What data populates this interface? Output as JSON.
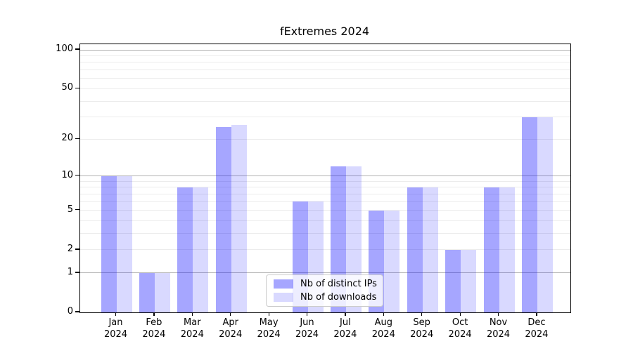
{
  "chart_data": {
    "type": "bar",
    "title": "fExtremes 2024",
    "categories": [
      "Jan",
      "Feb",
      "Mar",
      "Apr",
      "May",
      "Jun",
      "Jul",
      "Aug",
      "Sep",
      "Oct",
      "Nov",
      "Dec"
    ],
    "category_year": "2024",
    "series": [
      {
        "name": "Nb of distinct IPs",
        "color": "rgba(0,0,255,0.35)",
        "values": [
          10,
          1,
          8,
          25,
          0,
          6,
          12,
          5,
          8,
          2,
          8,
          30
        ]
      },
      {
        "name": "Nb of downloads",
        "color": "rgba(0,0,255,0.15)",
        "values": [
          10,
          1,
          8,
          26,
          0,
          6,
          12,
          5,
          8,
          2,
          8,
          30
        ]
      }
    ],
    "y_scale": "log1p",
    "ylim": [
      0,
      100
    ],
    "y_ticks": [
      0,
      1,
      2,
      5,
      10,
      20,
      50,
      100
    ],
    "y_major_gridlines": [
      1,
      10,
      100
    ],
    "y_minor_gridlines": [
      2,
      3,
      4,
      5,
      6,
      7,
      8,
      9,
      20,
      30,
      40,
      50,
      60,
      70,
      80,
      90
    ],
    "grid": true,
    "legend_position": "lower center inside",
    "colors": {
      "major_grid": "#b2b2b2",
      "minor_grid": "#ececec",
      "axis": "#000000",
      "background": "#ffffff",
      "legend_border": "#cccccc"
    }
  }
}
